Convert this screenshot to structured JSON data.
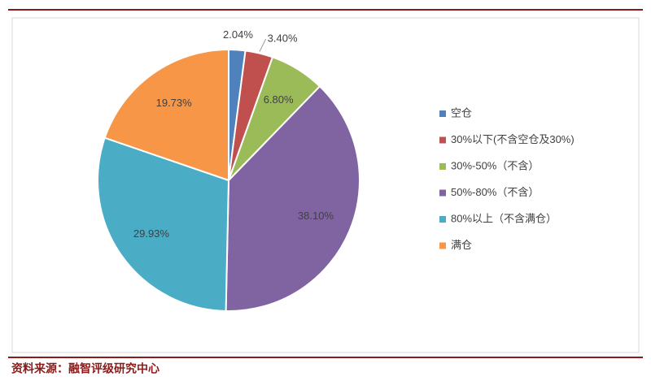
{
  "chart_data": {
    "type": "pie",
    "categories": [
      "空仓",
      "30%以下(不含空仓及30%)",
      "30%-50%（不含）",
      "50%-80%（不含）",
      "80%以上（不含满仓）",
      "满仓"
    ],
    "values": [
      2.04,
      3.4,
      6.8,
      38.1,
      29.93,
      19.73
    ],
    "value_labels": [
      "2.04%",
      "3.40%",
      "6.80%",
      "38.10%",
      "29.93%",
      "19.73%"
    ],
    "colors": [
      "#4f81bd",
      "#c0504d",
      "#9bbb59",
      "#8064a2",
      "#4bacc6",
      "#f79646"
    ],
    "legend": "right",
    "source": "资料来源：融智评级研究中心"
  }
}
